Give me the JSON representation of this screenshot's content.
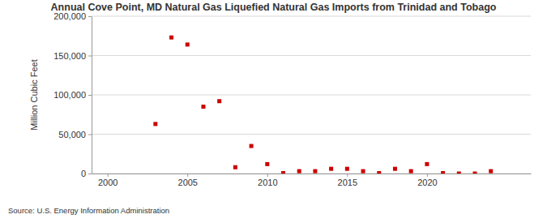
{
  "chart_data": {
    "type": "scatter",
    "title": "Annual Cove Point, MD Natural Gas Liquefied Natural Gas Imports from Trinidad and Tobago",
    "y_label": "Million Cubic Feet",
    "source": "Source: U.S. Energy Information Administration",
    "x": [
      2003,
      2004,
      2005,
      2006,
      2007,
      2008,
      2009,
      2010,
      2011,
      2012,
      2013,
      2014,
      2015,
      2016,
      2017,
      2018,
      2019,
      2020,
      2021,
      2022,
      2023,
      2024
    ],
    "values": [
      63000,
      173000,
      164000,
      85000,
      92000,
      8000,
      35000,
      12000,
      500,
      3000,
      3000,
      6000,
      6000,
      3000,
      500,
      6000,
      3000,
      12000,
      500,
      0,
      0,
      3000
    ],
    "color": "#cc0000",
    "marker": "square",
    "xlim": [
      1999,
      2026.5
    ],
    "xticks": [
      2000,
      2005,
      2010,
      2015,
      2020
    ],
    "ylim": [
      0,
      200000
    ],
    "yticks": [
      0,
      {
        "value": 50000,
        "label": "50,000"
      },
      {
        "value": 100000,
        "label": "100,000"
      },
      {
        "value": 150000,
        "label": "150,000"
      },
      {
        "value": 200000,
        "label": "200,000"
      }
    ],
    "grid": true
  }
}
